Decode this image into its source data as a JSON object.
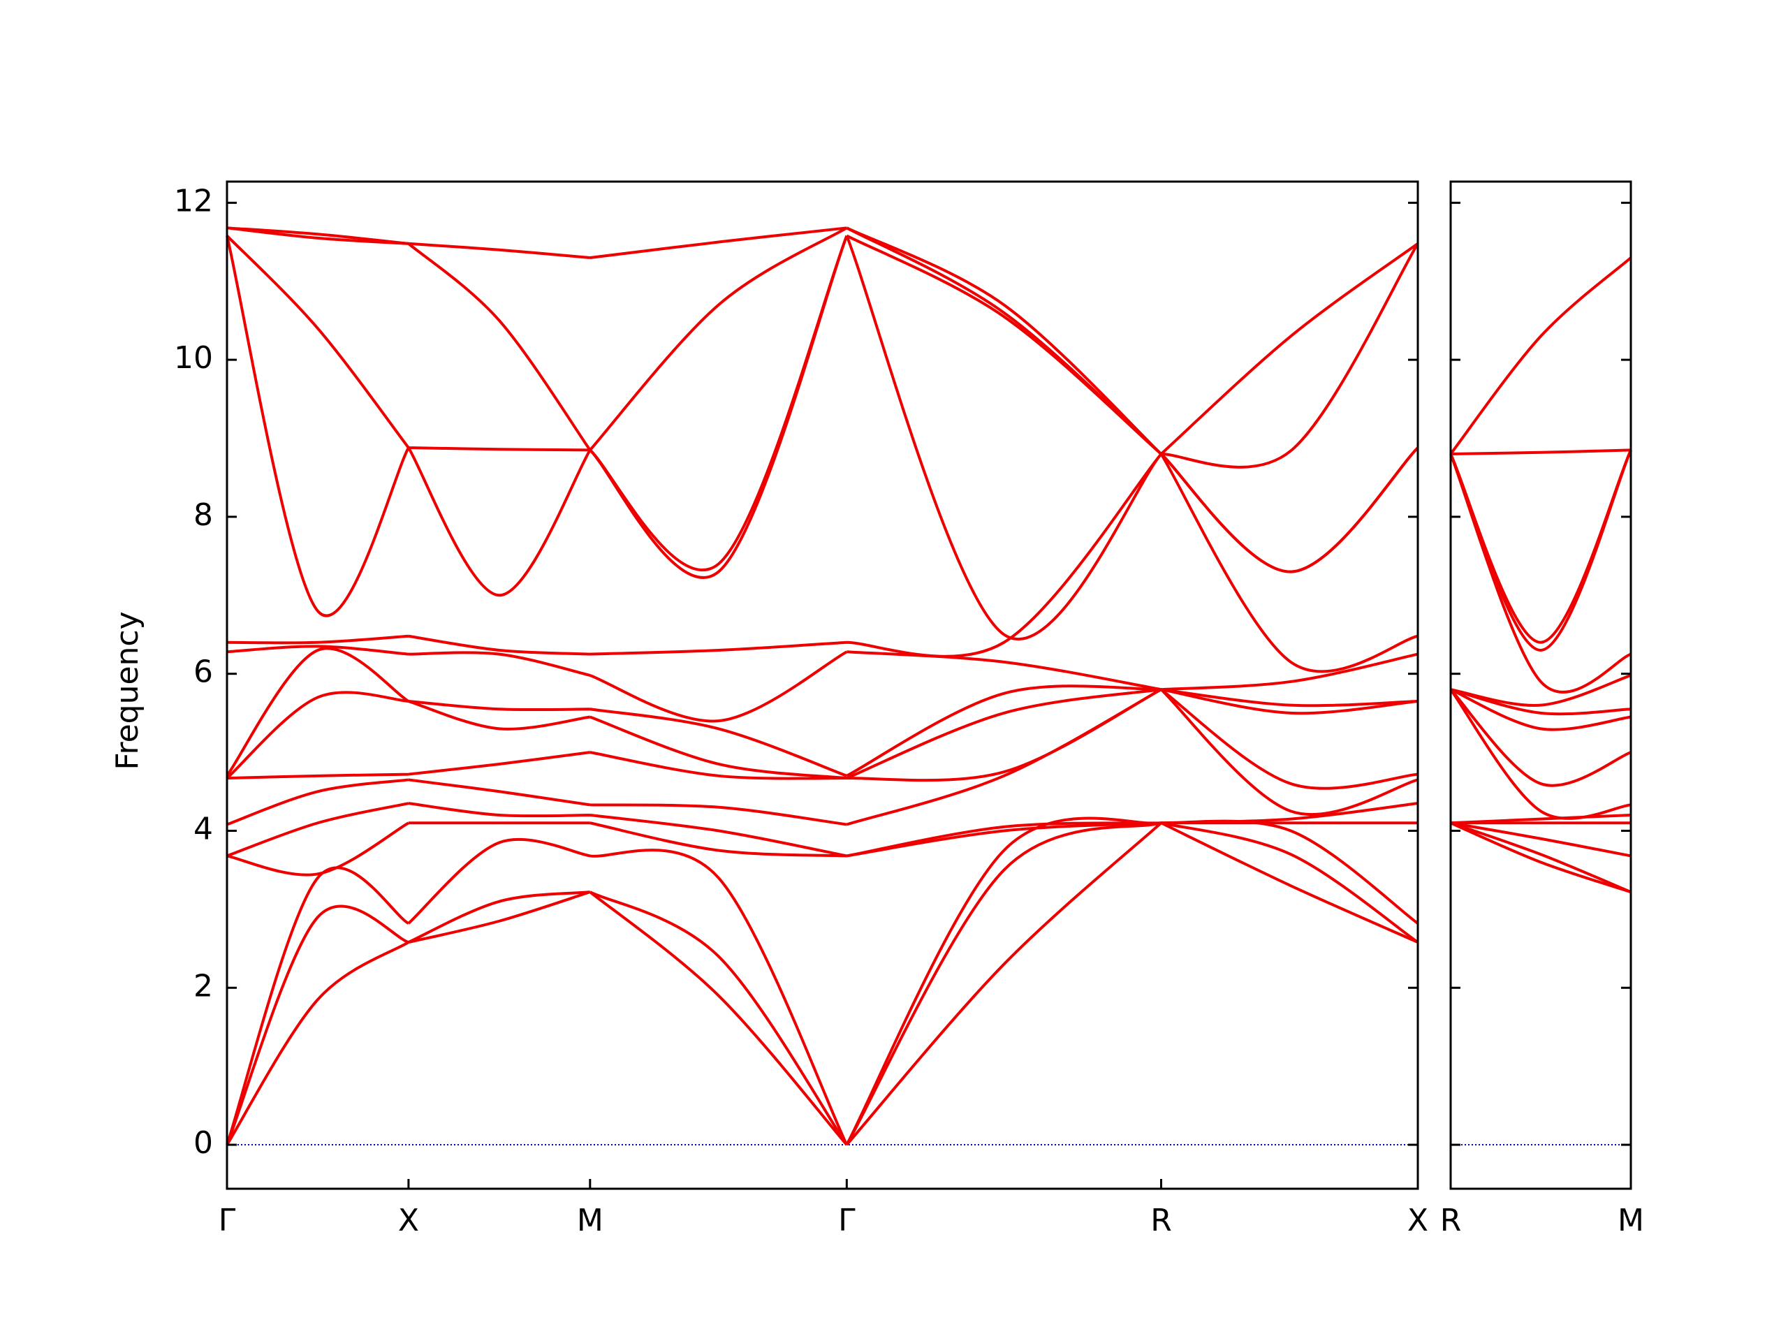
{
  "chart_data": [
    {
      "type": "line",
      "ylabel": "Frequency",
      "color": "#ee0000",
      "xlim": [
        0,
        3.28
      ],
      "ylim": [
        -0.56,
        12.27
      ],
      "xticks": [
        {
          "value": 0,
          "label": "Γ"
        },
        {
          "value": 0.5,
          "label": "X"
        },
        {
          "value": 1.0,
          "label": "M"
        },
        {
          "value": 1.707,
          "label": "Γ"
        },
        {
          "value": 2.573,
          "label": "R"
        },
        {
          "value": 3.28,
          "label": "X"
        }
      ],
      "yticks": [
        0,
        2,
        4,
        6,
        8,
        10,
        12
      ],
      "hline": {
        "value": 0,
        "color": "#0000cc"
      },
      "x": [
        0,
        0.25,
        0.5,
        0.75,
        1.0,
        1.354,
        1.707,
        2.14,
        2.573,
        2.93,
        3.28
      ],
      "series": [
        {
          "values": [
            0,
            1.85,
            2.58,
            2.85,
            3.22,
            1.9,
            0,
            2.3,
            4.1,
            3.3,
            2.58
          ]
        },
        {
          "values": [
            0,
            2.9,
            2.58,
            3.1,
            3.22,
            2.4,
            0,
            3.5,
            4.1,
            3.7,
            2.58
          ]
        },
        {
          "values": [
            0,
            3.4,
            2.82,
            3.85,
            3.68,
            3.4,
            0,
            3.75,
            4.1,
            4.0,
            2.82
          ]
        },
        {
          "values": [
            3.68,
            3.45,
            4.1,
            4.1,
            4.1,
            3.75,
            3.68,
            4.0,
            4.1,
            4.1,
            4.1
          ]
        },
        {
          "values": [
            3.68,
            4.1,
            4.35,
            4.2,
            4.2,
            4.0,
            3.68,
            4.05,
            4.1,
            4.15,
            4.35
          ]
        },
        {
          "values": [
            4.08,
            4.5,
            4.65,
            4.5,
            4.33,
            4.3,
            4.08,
            4.7,
            5.8,
            4.25,
            4.65
          ]
        },
        {
          "values": [
            4.67,
            4.7,
            4.72,
            4.85,
            5.0,
            4.7,
            4.67,
            4.75,
            5.8,
            4.6,
            4.72
          ]
        },
        {
          "values": [
            4.67,
            5.7,
            5.65,
            5.3,
            5.45,
            4.85,
            4.67,
            5.5,
            5.8,
            5.5,
            5.65
          ]
        },
        {
          "values": [
            4.7,
            6.3,
            5.65,
            5.55,
            5.55,
            5.3,
            4.7,
            5.75,
            5.8,
            5.6,
            5.65
          ]
        },
        {
          "values": [
            6.28,
            6.35,
            6.25,
            6.25,
            5.98,
            5.4,
            6.28,
            6.15,
            5.8,
            5.9,
            6.25
          ]
        },
        {
          "values": [
            6.4,
            6.4,
            6.48,
            6.3,
            6.25,
            6.3,
            6.4,
            6.4,
            8.8,
            6.15,
            6.48
          ]
        },
        {
          "values": [
            11.58,
            6.8,
            8.88,
            7.0,
            8.85,
            7.3,
            11.58,
            6.5,
            8.8,
            7.3,
            8.88
          ]
        },
        {
          "values": [
            11.58,
            10.4,
            8.88,
            8.86,
            8.85,
            7.4,
            11.58,
            10.55,
            8.8,
            7.3,
            8.88
          ]
        },
        {
          "values": [
            11.68,
            11.55,
            11.48,
            10.5,
            8.85,
            10.7,
            11.68,
            10.6,
            8.8,
            8.84,
            11.48
          ]
        },
        {
          "values": [
            11.68,
            11.6,
            11.48,
            11.4,
            11.3,
            11.5,
            11.68,
            10.7,
            8.8,
            10.3,
            11.48
          ]
        }
      ]
    },
    {
      "type": "line",
      "color": "#ee0000",
      "xlim": [
        0,
        0.5
      ],
      "xticks": [
        {
          "value": 0,
          "label": "R"
        },
        {
          "value": 0.5,
          "label": "M"
        }
      ],
      "hline": {
        "value": 0,
        "color": "#0000cc"
      },
      "x": [
        0,
        0.25,
        0.5
      ],
      "series": [
        {
          "values": [
            4.1,
            3.6,
            3.22
          ]
        },
        {
          "values": [
            4.1,
            3.7,
            3.22
          ]
        },
        {
          "values": [
            4.1,
            3.9,
            3.68
          ]
        },
        {
          "values": [
            4.1,
            4.1,
            4.1
          ]
        },
        {
          "values": [
            4.1,
            4.15,
            4.2
          ]
        },
        {
          "values": [
            5.8,
            4.25,
            4.33
          ]
        },
        {
          "values": [
            5.8,
            4.6,
            5.0
          ]
        },
        {
          "values": [
            5.8,
            5.3,
            5.45
          ]
        },
        {
          "values": [
            5.8,
            5.5,
            5.55
          ]
        },
        {
          "values": [
            5.8,
            5.6,
            5.98
          ]
        },
        {
          "values": [
            8.8,
            5.9,
            6.25
          ]
        },
        {
          "values": [
            8.8,
            6.3,
            8.85
          ]
        },
        {
          "values": [
            8.8,
            6.4,
            8.85
          ]
        },
        {
          "values": [
            8.8,
            8.82,
            8.85
          ]
        },
        {
          "values": [
            8.8,
            10.3,
            11.3
          ]
        }
      ]
    }
  ]
}
